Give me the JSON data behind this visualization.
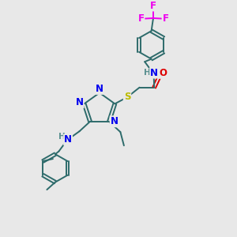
{
  "bg_color": "#e8e8e8",
  "bond_color": "#2d6b6b",
  "N_color": "#0000ee",
  "O_color": "#dd0000",
  "S_color": "#bbbb00",
  "F_color": "#ee00ee",
  "NH_color": "#5a9090",
  "line_width": 1.4,
  "font_size": 8.5,
  "font_size_small": 7.5,
  "figsize": [
    3.0,
    3.0
  ],
  "dpi": 100,
  "xlim": [
    0,
    10
  ],
  "ylim": [
    0,
    10
  ]
}
